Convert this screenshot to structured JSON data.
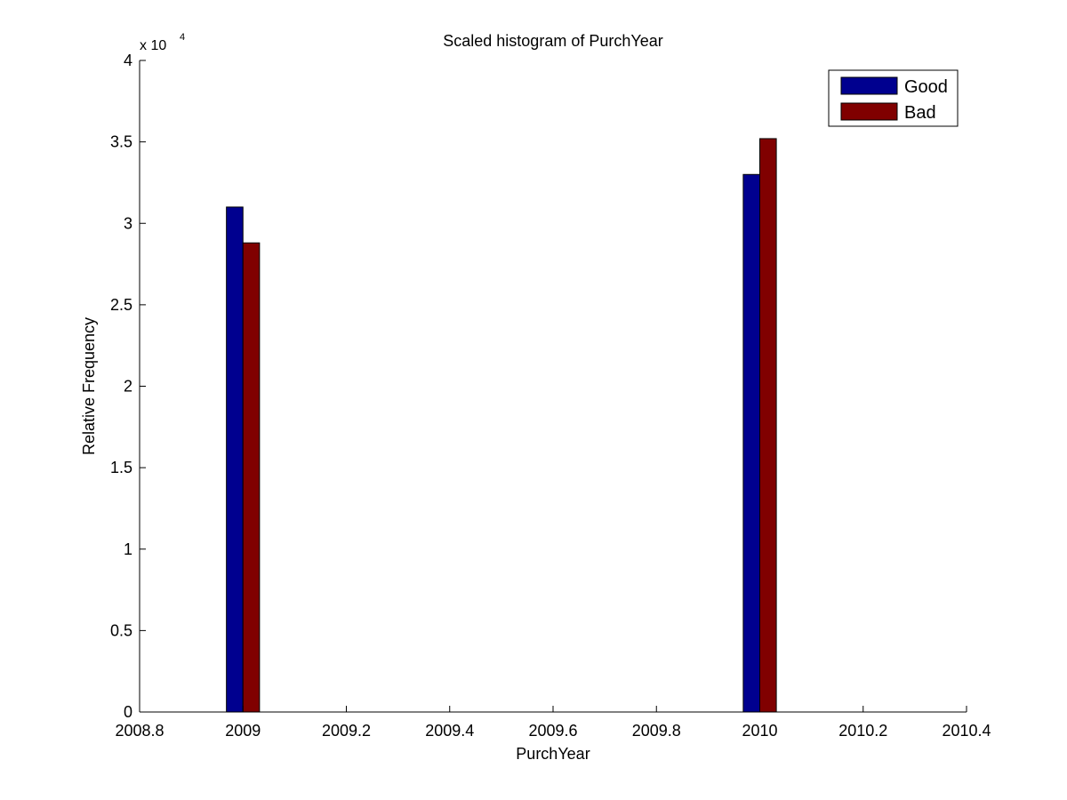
{
  "chart_data": {
    "type": "bar",
    "title": "Scaled histogram of PurchYear",
    "xlabel": "PurchYear",
    "ylabel": "Relative Frequency",
    "y_multiplier": {
      "base": "x 10",
      "exponent": "4"
    },
    "xlim": [
      2008.8,
      2010.4
    ],
    "ylim": [
      0,
      4
    ],
    "x_ticks": [
      2008.8,
      2009,
      2009.2,
      2009.4,
      2009.6,
      2009.8,
      2010,
      2010.2,
      2010.4
    ],
    "x_tick_labels": [
      "2008.8",
      "2009",
      "2009.2",
      "2009.4",
      "2009.6",
      "2009.8",
      "2010",
      "2010.2",
      "2010.4"
    ],
    "y_ticks": [
      0,
      0.5,
      1,
      1.5,
      2,
      2.5,
      3,
      3.5,
      4
    ],
    "y_tick_labels": [
      "0",
      "0.5",
      "1",
      "1.5",
      "2",
      "2.5",
      "3",
      "3.5",
      "4"
    ],
    "categories": [
      2009,
      2010
    ],
    "bar_group_width": 0.064,
    "series": [
      {
        "name": "Good",
        "color": "#00008f",
        "values": [
          3.1,
          3.3
        ]
      },
      {
        "name": "Bad",
        "color": "#800000",
        "values": [
          2.88,
          3.52
        ]
      }
    ],
    "grid": false,
    "legend_position": "top-right"
  }
}
